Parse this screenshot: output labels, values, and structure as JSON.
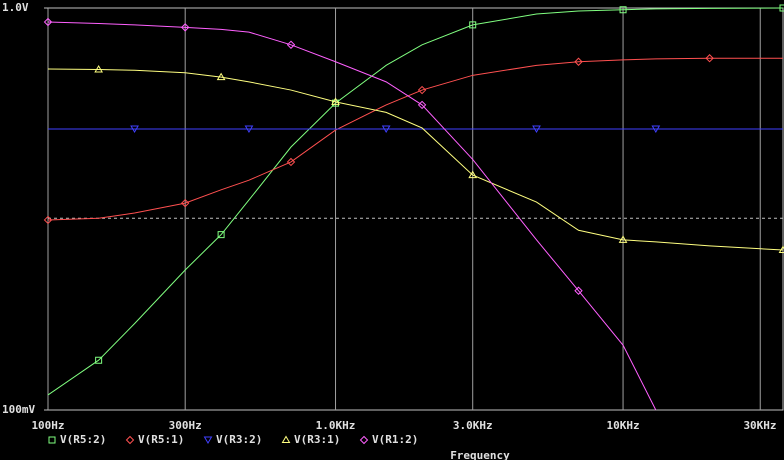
{
  "chart_data": {
    "type": "line",
    "x_label": "Frequency",
    "x": [
      100,
      150,
      200,
      300,
      400,
      500,
      700,
      1000,
      1500,
      2000,
      3000,
      5000,
      7000,
      10000,
      13000,
      20000,
      36000
    ],
    "xlim": [
      100,
      36000
    ],
    "ylim": [
      0.1,
      1
    ],
    "xlog": true,
    "ylog": true,
    "grid": true,
    "xticks": [
      {
        "value": 100,
        "label": "100Hz"
      },
      {
        "value": 300,
        "label": "300Hz"
      },
      {
        "value": 1000,
        "label": "1.0KHz"
      },
      {
        "value": 3000,
        "label": "3.0KHz"
      },
      {
        "value": 10000,
        "label": "10KHz"
      },
      {
        "value": 30000,
        "label": "30KHz"
      }
    ],
    "yticks": [
      {
        "value": 0.1,
        "label": "100mV"
      },
      {
        "value": 1,
        "label": "1.0V"
      }
    ],
    "dashed_line": 0.3,
    "series": [
      {
        "name": "V(R5:2)",
        "color": "#80ff80",
        "marker": "square",
        "values": [
          0.109,
          0.133,
          0.164,
          0.223,
          0.273,
          0.333,
          0.451,
          0.58,
          0.72,
          0.81,
          0.908,
          0.966,
          0.983,
          0.99,
          0.995,
          0.998,
          1.0
        ]
      },
      {
        "name": "V(R5:1)",
        "color": "#ff5050",
        "marker": "diamond",
        "values": [
          0.297,
          0.3,
          0.309,
          0.327,
          0.353,
          0.373,
          0.414,
          0.497,
          0.574,
          0.625,
          0.68,
          0.72,
          0.735,
          0.743,
          0.747,
          0.75,
          0.75
        ]
      },
      {
        "name": "V(R3:2)",
        "color": "#4040ff",
        "marker": "triangle-down",
        "values": [
          0.5,
          0.5,
          0.5,
          0.5,
          0.5,
          0.5,
          0.5,
          0.5,
          0.5,
          0.5,
          0.5,
          0.5,
          0.5,
          0.5,
          0.5,
          0.5,
          0.5
        ]
      },
      {
        "name": "V(R3:1)",
        "color": "#ffff80",
        "marker": "triangle",
        "values": [
          0.705,
          0.703,
          0.7,
          0.69,
          0.673,
          0.655,
          0.625,
          0.584,
          0.55,
          0.503,
          0.384,
          0.329,
          0.28,
          0.265,
          0.262,
          0.256,
          0.25
        ]
      },
      {
        "name": "V(R1:2)",
        "color": "#ff60ff",
        "marker": "diamond",
        "values": [
          0.923,
          0.915,
          0.908,
          0.895,
          0.885,
          0.871,
          0.81,
          0.735,
          0.655,
          0.574,
          0.42,
          0.265,
          0.198,
          0.145,
          0.1,
          null,
          null
        ]
      }
    ]
  }
}
